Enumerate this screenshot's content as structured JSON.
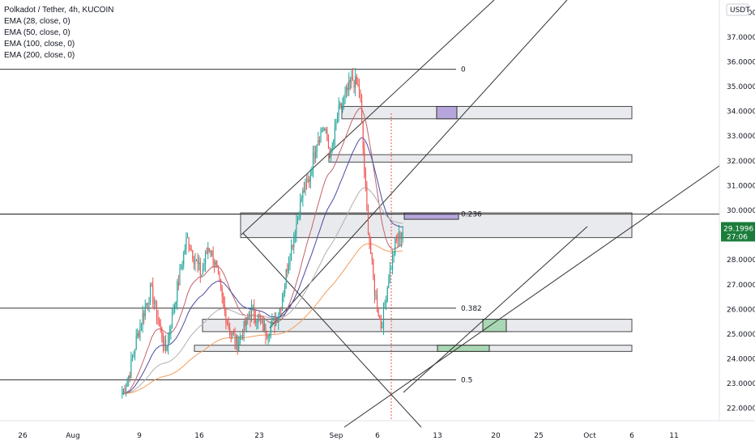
{
  "header": {
    "symbol_title": "Polkadot / Tether, 4h, KUCOIN",
    "indicators": [
      "EMA (28, close, 0)",
      "EMA (50, close, 0)",
      "EMA (100, close, 0)",
      "EMA (200, close, 0)"
    ]
  },
  "price_axis": {
    "currency": "USDT",
    "current_price": "29.1996",
    "countdown": "27:06"
  },
  "colors": {
    "up": "#26a69a",
    "down": "#ef5350",
    "ema28": "#c0636b",
    "ema50": "#4a4aa0",
    "ema100": "#b0b0b0",
    "ema200": "#f39c5a",
    "price_badge": "#1b7d3a"
  },
  "chart_data": {
    "type": "candlestick",
    "ylim": [
      21.5,
      38.5
    ],
    "y_ticks": [
      22,
      23,
      24,
      25,
      26,
      27,
      28,
      29,
      30,
      31,
      32,
      33,
      34,
      35,
      36,
      37,
      38
    ],
    "y_tick_labels": [
      "22.0000",
      "23.0000",
      "24.0000",
      "25.0000",
      "26.0000",
      "27.0000",
      "28.0000",
      "29.0000",
      "30.0000",
      "31.0000",
      "32.0000",
      "33.0000",
      "34.0000",
      "35.0000",
      "36.0000",
      "37.0000",
      "38.0000"
    ],
    "x_tick_labels": [
      "26",
      "Aug",
      "9",
      "16",
      "23",
      "Sep",
      "6",
      "13",
      "20",
      "25",
      "Oct",
      "6",
      "11"
    ],
    "fib_levels": [
      {
        "label": "0",
        "price": 35.7
      },
      {
        "label": "0.236",
        "price": 29.85
      },
      {
        "label": "0.382",
        "price": 26.05
      },
      {
        "label": "0.5",
        "price": 23.15
      }
    ],
    "zones": [
      {
        "top": 34.2,
        "bottom": 33.7
      },
      {
        "top": 32.25,
        "bottom": 31.95
      },
      {
        "top": 29.9,
        "bottom": 28.9
      },
      {
        "top": 25.6,
        "bottom": 25.1
      },
      {
        "top": 24.55,
        "bottom": 24.3
      }
    ],
    "price_path": [
      22.6,
      23.4,
      24.8,
      25.9,
      26.8,
      25.6,
      24.3,
      25.8,
      27.4,
      28.9,
      28.1,
      27.4,
      28.6,
      27.8,
      26.2,
      25.1,
      24.6,
      25.3,
      25.9,
      25.6,
      25.1,
      25.4,
      26.1,
      27.8,
      29.2,
      30.6,
      31.3,
      32.8,
      33.4,
      32.2,
      33.9,
      34.6,
      35.3,
      34.9,
      29.9,
      26.9,
      25.3,
      27.2,
      28.7,
      29.2
    ]
  }
}
